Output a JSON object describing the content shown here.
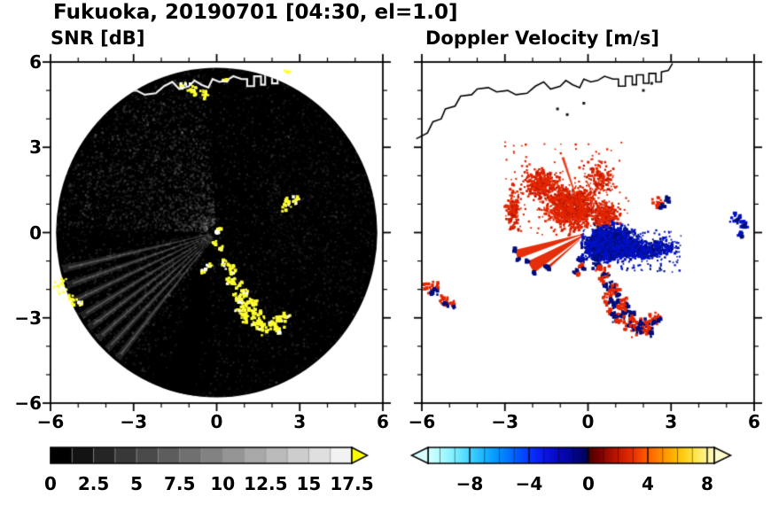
{
  "title": "Fukuoka, 20190701 [04:30, el=1.0]",
  "panels": {
    "snr": {
      "title": "SNR [dB]"
    },
    "doppler": {
      "title": "Doppler Velocity [m/s]"
    }
  },
  "axes": {
    "xtick_labels": [
      "−6",
      "−3",
      "0",
      "3",
      "6"
    ],
    "ytick_labels": [
      "6",
      "3",
      "0",
      "−3",
      "−6"
    ]
  },
  "colorbars": {
    "snr": {
      "labels": [
        "0",
        "2.5",
        "5",
        "7.5",
        "10",
        "12.5",
        "15",
        "17.5"
      ],
      "over_color": "#ffff00"
    },
    "doppler": {
      "labels": [
        "−8",
        "−4",
        "0",
        "4",
        "8"
      ],
      "values": [
        -8,
        -4,
        0,
        4,
        8
      ]
    }
  },
  "chart_data": [
    {
      "type": "heatmap",
      "panel": "left",
      "title": "SNR [dB]",
      "xlim": [
        -6,
        6
      ],
      "ylim": [
        -6,
        6
      ],
      "xticks": [
        -6,
        -3,
        0,
        3,
        6
      ],
      "yticks": [
        -6,
        -3,
        0,
        3,
        6
      ],
      "grid": false,
      "colorbar": {
        "vmin": 0,
        "vmax": 17.5,
        "ticks": [
          0,
          2.5,
          5,
          7.5,
          10,
          12.5,
          15,
          17.5
        ],
        "cmap": "grayscale black to white",
        "over_arrow_color": "#ffff00",
        "position": "bottom"
      },
      "content": "Dark radar disk of radius ~5.8 centered at (0,0); faint gray echo speckle, brighter haze sector to the upper-left, thin bright radial streaks toward the lower-left, a dark wedge due south; bright yellow high-SNR ground-clutter arc running from just south of the radar toward the southeast, isolated yellow patches at the west edge, along the north shoreline and east of the radar; white coastline across the top of the disk; bright white spot at the radar position (0,0)."
    },
    {
      "type": "heatmap",
      "panel": "right",
      "title": "Doppler Velocity [m/s]",
      "xlim": [
        -6,
        6
      ],
      "ylim": [
        -6,
        6
      ],
      "xticks": [
        -6,
        -3,
        0,
        3,
        6
      ],
      "yticks": [
        -6,
        -3,
        0,
        3,
        6
      ],
      "grid": false,
      "colorbar": {
        "vmin": -10.8,
        "vmax": 8.5,
        "ticks": [
          -8,
          -4,
          0,
          4,
          8
        ],
        "cmap": "diverging: pale cyan to blue to dark navy (negative) | dark red to red to orange to pale yellow (positive)",
        "position": "bottom"
      },
      "content": "White background with black coastline at top; red (receding) echoes scattered north-west of the radar plus solid red wedges pointing south-west; dense blue (approaching) echo lobe just south-east of the radar with scattered blue farther east and at the east edge; mixed red/navy clutter arc to the south matching the SNR clutter arc; white gap at the radar position (0,0)."
    }
  ],
  "features": {
    "circle_radius": 5.8,
    "coastline": [
      [
        -6.2,
        3.3
      ],
      [
        -5.8,
        3.5
      ],
      [
        -5.6,
        3.9
      ],
      [
        -5.3,
        4.0
      ],
      [
        -5.15,
        4.35
      ],
      [
        -4.8,
        4.45
      ],
      [
        -4.6,
        4.8
      ],
      [
        -4.2,
        4.85
      ],
      [
        -4.0,
        5.05
      ],
      [
        -3.6,
        5.1
      ],
      [
        -3.3,
        4.95
      ],
      [
        -2.9,
        5.0
      ],
      [
        -2.6,
        4.85
      ],
      [
        -2.2,
        4.9
      ],
      [
        -1.9,
        5.15
      ],
      [
        -1.6,
        5.3
      ],
      [
        -1.35,
        5.05
      ],
      [
        -1.0,
        5.15
      ],
      [
        -0.8,
        5.35
      ],
      [
        -0.55,
        5.2
      ],
      [
        -0.3,
        5.1
      ],
      [
        -0.15,
        5.4
      ],
      [
        0.1,
        5.3
      ],
      [
        0.35,
        5.35
      ],
      [
        0.6,
        5.5
      ],
      [
        0.9,
        5.4
      ],
      [
        1.1,
        5.4
      ],
      [
        1.1,
        5.15
      ],
      [
        1.35,
        5.15
      ],
      [
        1.35,
        5.5
      ],
      [
        1.6,
        5.5
      ],
      [
        1.6,
        5.2
      ],
      [
        1.75,
        5.2
      ],
      [
        1.75,
        5.55
      ],
      [
        2.0,
        5.55
      ],
      [
        2.0,
        5.25
      ],
      [
        2.2,
        5.25
      ],
      [
        2.2,
        5.6
      ],
      [
        2.45,
        5.6
      ],
      [
        2.45,
        5.3
      ],
      [
        2.65,
        5.3
      ],
      [
        2.65,
        5.65
      ],
      [
        2.9,
        5.7
      ],
      [
        3.05,
        5.95
      ]
    ],
    "arc_chain": [
      [
        0.35,
        -1.1,
        0.2
      ],
      [
        0.55,
        -1.35,
        0.25
      ],
      [
        0.5,
        -1.7,
        0.2
      ],
      [
        0.8,
        -1.85,
        0.25
      ],
      [
        1.0,
        -2.1,
        0.2
      ],
      [
        0.75,
        -2.3,
        0.3
      ],
      [
        1.05,
        -2.5,
        0.25
      ],
      [
        1.3,
        -2.45,
        0.2
      ],
      [
        1.2,
        -2.8,
        0.3
      ],
      [
        1.5,
        -2.9,
        0.25
      ],
      [
        1.45,
        -3.2,
        0.3
      ],
      [
        1.75,
        -3.3,
        0.35
      ],
      [
        2.05,
        -3.25,
        0.3
      ],
      [
        2.3,
        -3.05,
        0.25
      ],
      [
        2.2,
        -3.45,
        0.2
      ],
      [
        1.0,
        -3.0,
        0.2
      ],
      [
        0.8,
        -2.75,
        0.15
      ],
      [
        2.5,
        -2.95,
        0.15
      ],
      [
        -0.45,
        -1.35,
        0.12
      ],
      [
        -0.25,
        -1.15,
        0.1
      ]
    ],
    "left_edge_blobs": [
      [
        -5.65,
        -1.95,
        0.35
      ],
      [
        -5.2,
        -2.35,
        0.25
      ],
      [
        -4.9,
        -2.5,
        0.12
      ]
    ],
    "right_pair": [
      [
        2.55,
        1.0,
        0.28
      ],
      [
        2.85,
        1.15,
        0.18
      ]
    ],
    "top_yellow": [
      [
        -0.85,
        5.05,
        0.25
      ],
      [
        -0.45,
        4.9,
        0.2
      ],
      [
        -1.25,
        5.2,
        0.15
      ],
      [
        2.55,
        5.65,
        0.12
      ],
      [
        0.3,
        5.35,
        0.1
      ]
    ],
    "center_spots": [
      [
        0.05,
        0.1,
        0.12
      ],
      [
        -0.1,
        -0.35,
        0.1
      ],
      [
        0.15,
        -0.55,
        0.08
      ]
    ],
    "snr": {
      "rays_deg": [
        193,
        199,
        205,
        211,
        216,
        221,
        226,
        231
      ],
      "dark_wedge": [
        250,
        262
      ],
      "bright_sector": [
        95,
        178
      ],
      "glow_sector": [
        188,
        236
      ],
      "right_fuzz_sector": [
        -25,
        55
      ]
    },
    "doppler": {
      "red_clusters": [
        [
          -0.6,
          0.9,
          0.9,
          0.7,
          900
        ],
        [
          -1.7,
          1.7,
          0.6,
          0.5,
          300
        ],
        [
          -2.7,
          0.8,
          0.25,
          0.7,
          150
        ],
        [
          0.4,
          1.9,
          0.5,
          0.5,
          150
        ],
        [
          0.6,
          0.6,
          0.5,
          0.4,
          250
        ]
      ],
      "red_rays": [
        [
          108,
          110,
          2.8
        ],
        [
          122,
          124,
          2.2
        ],
        [
          137,
          139,
          2.6
        ]
      ],
      "red_wedges": [
        [
          193,
          200,
          0.3,
          2.7
        ],
        [
          205,
          216,
          0.25,
          2.4
        ],
        [
          219,
          222,
          0.4,
          1.9
        ]
      ],
      "blue_clusters": [
        [
          0.75,
          -0.4,
          0.75,
          0.5,
          2500
        ],
        [
          1.9,
          -0.6,
          0.6,
          0.3,
          400
        ],
        [
          2.8,
          -0.5,
          0.4,
          0.25,
          120
        ],
        [
          -0.25,
          -0.95,
          0.12,
          0.1,
          40
        ]
      ],
      "blue_edge": [
        [
          5.35,
          0.55,
          0.25
        ],
        [
          5.6,
          0.3,
          0.2
        ],
        [
          5.5,
          -0.05,
          0.12
        ]
      ],
      "dark_specks": [
        [
          -1.1,
          4.35
        ],
        [
          -0.75,
          4.15
        ],
        [
          -0.15,
          4.55
        ],
        [
          2.3,
          5.25
        ],
        [
          2.0,
          5.0
        ]
      ]
    },
    "colors": {
      "snr_yellow": "#ffff2e",
      "dop_red": "#e42600",
      "dop_navy": "#000d7a",
      "dop_blue": "#0011c8"
    }
  }
}
